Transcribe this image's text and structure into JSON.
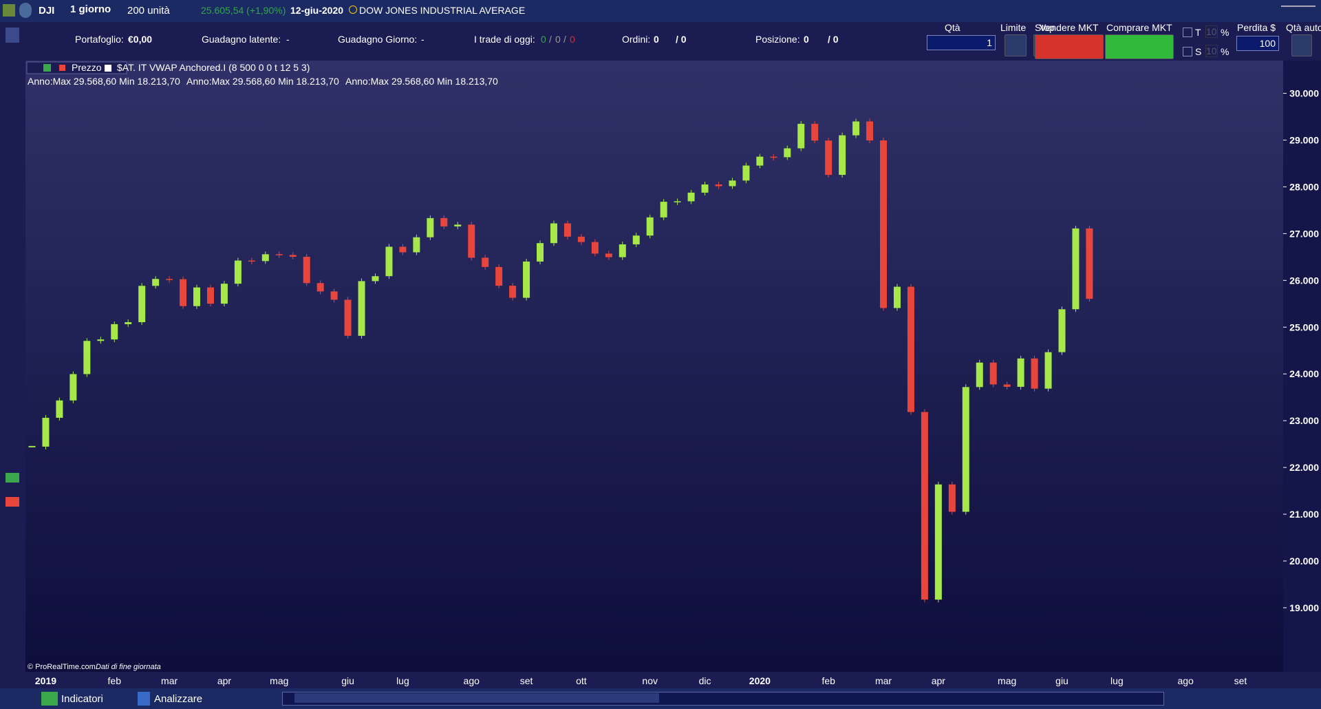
{
  "header": {
    "symbol": "DJI",
    "period": "1 giorno",
    "units": "200 unità",
    "last_price": "25.605,54 (+1,90%)",
    "date": "12-giu-2020",
    "instrument": "DOW JONES INDUSTRIAL AVERAGE"
  },
  "trading_bar": {
    "portfolio_label": "Portafoglio:",
    "portfolio_value": "€0,00",
    "latent_label": "Guadagno latente:",
    "latent_value": "-",
    "day_label": "Guadagno Giorno:",
    "day_value": "-",
    "trades_label": "I trade di oggi:",
    "trades": [
      "0",
      "/",
      "0",
      "/",
      "0"
    ],
    "orders_label": "Ordini:",
    "orders_value": "0",
    "orders_other": "/ 0",
    "position_label": "Posizione:",
    "position_value": "0",
    "position_other": "/ 0",
    "qty_label": "Qtà",
    "qty_value": "1",
    "limit_label": "Limite",
    "stop_label": "Stop",
    "sell_label": "Vendere MKT",
    "buy_label": "Comprare MKT",
    "t_label": "T",
    "t_value": "10",
    "t_unit": "%",
    "s_label": "S",
    "s_value": "10",
    "s_unit": "%",
    "loss_label": "Perdita $",
    "loss_value": "100",
    "auto_qty_label": "Qtà auto"
  },
  "chart_data": {
    "type": "candlestick",
    "legend": [
      "Prezzo",
      "$AT. IT VWAP Anchored.I (8 500 0 0 t 12 5 3)"
    ],
    "annotations": [
      "Anno:Max 29.568,60 Min 18.213,70",
      "Anno:Max 29.568,60 Min 18.213,70",
      "Anno:Max 29.568,60 Min 18.213,70"
    ],
    "source": "© ProRealTime.com",
    "source_note": "Dati di fine giornata",
    "up_color": "#a6e84a",
    "down_color": "#e8453c",
    "categories": [
      null,
      "2019",
      null,
      null,
      null,
      null,
      "feb",
      null,
      null,
      null,
      "mar",
      null,
      null,
      null,
      "apr",
      null,
      null,
      null,
      "mag",
      null,
      null,
      null,
      null,
      "giu",
      null,
      null,
      null,
      "lug",
      null,
      null,
      null,
      null,
      "ago",
      null,
      null,
      null,
      "set",
      null,
      null,
      null,
      "ott",
      null,
      null,
      null,
      null,
      "nov",
      null,
      null,
      null,
      "dic",
      null,
      null,
      null,
      "2020",
      null,
      null,
      null,
      null,
      "feb",
      null,
      null,
      null,
      "mar",
      null,
      null,
      null,
      "apr",
      null,
      null,
      null,
      null,
      "mag",
      null,
      null,
      null,
      "giu",
      null,
      null,
      null,
      "lug",
      null,
      null,
      null,
      null,
      "ago",
      null,
      null,
      null,
      "set",
      null,
      null,
      null
    ],
    "values": [
      22445,
      23062,
      23433,
      23996,
      24706,
      24737,
      25064,
      25106,
      25883,
      26031,
      26026,
      25450,
      25849,
      25502,
      25929,
      26424,
      26412,
      26559,
      26543,
      26505,
      25942,
      25764,
      25586,
      24815,
      25984,
      26090,
      26719,
      26600,
      26922,
      27332,
      27154,
      27192,
      26485,
      26287,
      25886,
      25628,
      26403,
      26797,
      27219,
      26935,
      26820,
      26573,
      26496,
      26770,
      26958,
      27347,
      27681,
      27691,
      27876,
      28051,
      28015,
      28135,
      28455,
      28645,
      28634,
      28824,
      29348,
      28989,
      28256,
      29102,
      29398,
      28992,
      25409,
      25864,
      23185,
      19174,
      21637,
      21052,
      23719,
      24242,
      23775,
      23724,
      24331,
      23685,
      24465,
      25383,
      27111,
      25605,
      null,
      null,
      null,
      null,
      null,
      null,
      null,
      null,
      null,
      null,
      null,
      null,
      null,
      null
    ],
    "ylim": [
      17630,
      30700
    ],
    "yticks": [
      {
        "value": 19000,
        "label": "19.000"
      },
      {
        "value": 20000,
        "label": "20.000"
      },
      {
        "value": 21000,
        "label": "21.000"
      },
      {
        "value": 22000,
        "label": "22.000"
      },
      {
        "value": 23000,
        "label": "23.000"
      },
      {
        "value": 24000,
        "label": "24.000"
      },
      {
        "value": 25000,
        "label": "25.000"
      },
      {
        "value": 26000,
        "label": "26.000"
      },
      {
        "value": 27000,
        "label": "27.000"
      },
      {
        "value": 28000,
        "label": "28.000"
      },
      {
        "value": 29000,
        "label": "29.000"
      },
      {
        "value": 30000,
        "label": "30.000"
      }
    ]
  },
  "bottom_bar": {
    "indicators": "Indicatori",
    "analyze": "Analizzare"
  }
}
